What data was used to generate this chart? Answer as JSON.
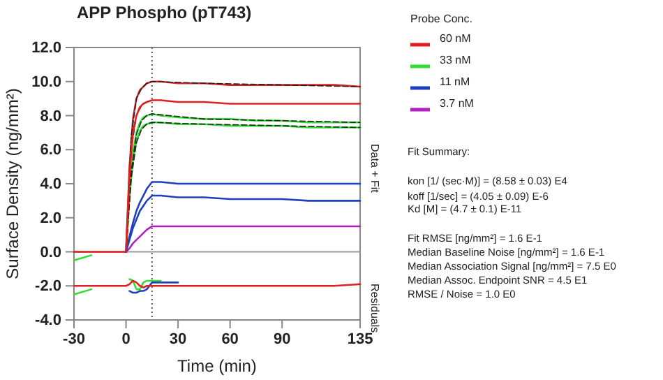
{
  "chart_data": {
    "type": "line",
    "title": "APP Phospho (pT743)",
    "xlabel": "Time (min)",
    "ylabel": "Surface Density (ng/mm²)",
    "legend_title": "Probe Conc.",
    "legend": "right",
    "x": [
      -30,
      -20,
      -10,
      0,
      2,
      4,
      6,
      8,
      10,
      12,
      15,
      20,
      30,
      45,
      60,
      75,
      90,
      105,
      120,
      135
    ],
    "xlim": [
      -30,
      135
    ],
    "xticks": [
      -30,
      0,
      30,
      60,
      90,
      135
    ],
    "ylim": [
      -4,
      12
    ],
    "yticks": [
      {
        "value": -4,
        "label": "-4.0"
      },
      {
        "value": -2,
        "label": "-2.0"
      },
      {
        "value": 0,
        "label": "0.0"
      },
      {
        "value": 2,
        "label": "2.0"
      },
      {
        "value": 4,
        "label": "4.0"
      },
      {
        "value": 6,
        "label": "6.0"
      },
      {
        "value": 8,
        "label": "8.0"
      },
      {
        "value": 10,
        "label": "10.0"
      },
      {
        "value": 12,
        "label": "12.0"
      }
    ],
    "grid": false,
    "marker": "none",
    "line_style": "solid",
    "series": [
      {
        "name": "60 nM",
        "color": "#e02020",
        "values": [
          null,
          null,
          null,
          0,
          5.0,
          7.8,
          9.0,
          9.5,
          9.7,
          9.9,
          10.0,
          10.0,
          9.9,
          9.9,
          9.8,
          9.8,
          9.8,
          9.8,
          9.8,
          9.7
        ]
      },
      {
        "name": "33 nM",
        "color": "#33dd33",
        "values": [
          -0.5,
          -0.2,
          null,
          0,
          3.5,
          5.8,
          7.0,
          7.6,
          7.9,
          8.0,
          8.1,
          8.0,
          7.9,
          7.8,
          7.8,
          7.7,
          7.7,
          7.6,
          7.6,
          7.6
        ]
      },
      {
        "name": "11 nM",
        "color": "#1f3fbf",
        "values": [
          null,
          null,
          null,
          0,
          0.9,
          1.7,
          2.4,
          2.9,
          3.3,
          3.7,
          4.1,
          4.1,
          4.0,
          4.0,
          4.0,
          4.0,
          4.0,
          4.0,
          4.0,
          4.0
        ]
      },
      {
        "name": "3.7 nM",
        "color": "#b020c0",
        "values": [
          null,
          null,
          null,
          0,
          0.2,
          0.5,
          0.7,
          0.9,
          1.1,
          1.3,
          1.5,
          1.5,
          1.5,
          1.5,
          1.5,
          1.5,
          1.5,
          1.5,
          1.5,
          1.5
        ]
      },
      {
        "color": "#33dd33",
        "values": [
          null,
          null,
          null,
          0,
          3.2,
          5.4,
          6.5,
          7.1,
          7.4,
          7.5,
          7.6,
          7.6,
          7.5,
          7.5,
          7.4,
          7.4,
          7.4,
          7.3,
          7.3,
          7.3
        ]
      },
      {
        "color": "#1f3fbf",
        "values": [
          null,
          null,
          null,
          0,
          0.7,
          1.4,
          1.9,
          2.4,
          2.7,
          3.0,
          3.3,
          3.3,
          3.2,
          3.2,
          3.1,
          3.1,
          3.1,
          3.0,
          3.0,
          3.0
        ]
      },
      {
        "color": "#33dd33",
        "values": [
          -2.5,
          -2.2,
          null,
          null,
          -1.6,
          -1.7,
          -2.2,
          -2.2,
          -1.8,
          -1.7,
          -1.7,
          -1.7,
          null,
          null,
          null,
          null,
          null,
          null,
          null,
          null
        ]
      },
      {
        "color": "#1f3fbf",
        "values": [
          null,
          null,
          null,
          null,
          -2.3,
          -2.4,
          -2.4,
          -2.3,
          -2.3,
          -2.2,
          -1.8,
          -1.8,
          -1.8,
          null,
          null,
          null,
          null,
          null,
          null,
          null
        ]
      },
      {
        "color": "#e02020",
        "values": [
          -2.0,
          -2.0,
          -2.0,
          -2.0,
          -1.9,
          -1.7,
          -1.8,
          -2.0,
          -2.1,
          -2.0,
          -2.0,
          -2.0,
          -2.0,
          -2.0,
          -2.0,
          -2.0,
          -2.0,
          -2.0,
          -2.0,
          -1.9
        ]
      },
      {
        "color": "#222222",
        "line_style": "dashed",
        "x": [
          0,
          3,
          6,
          9,
          12,
          15,
          45,
          90,
          135
        ],
        "values": [
          0,
          6.8,
          9.0,
          9.6,
          9.9,
          10.0,
          9.9,
          9.8,
          9.7
        ]
      },
      {
        "color": "#222222",
        "line_style": "dashed",
        "x": [
          0,
          3,
          6,
          9,
          12,
          15
        ],
        "values": [
          0,
          6.0,
          8.0,
          8.6,
          8.8,
          8.9
        ]
      },
      {
        "color": "#222222",
        "line_style": "dashed",
        "x": [
          0,
          3,
          6,
          9,
          12,
          15,
          45,
          90,
          135
        ],
        "values": [
          0,
          4.7,
          6.9,
          7.7,
          8.0,
          8.1,
          7.8,
          7.7,
          7.6
        ]
      },
      {
        "color": "#222222",
        "line_style": "dashed",
        "x": [
          0,
          3,
          6,
          9,
          12,
          15,
          45,
          90,
          135
        ],
        "values": [
          0,
          4.3,
          6.4,
          7.2,
          7.5,
          7.6,
          7.5,
          7.4,
          7.3
        ]
      },
      {
        "color": "#e02020",
        "values": [
          0,
          0,
          0,
          0,
          4.5,
          7.0,
          8.0,
          8.5,
          8.7,
          8.8,
          8.9,
          8.9,
          8.8,
          8.8,
          8.7,
          8.7,
          8.7,
          8.7,
          8.7,
          8.7
        ]
      }
    ],
    "ref_lines": [
      {
        "axis": "x",
        "value": 15,
        "color": "#555555",
        "line_style": "dotted"
      },
      {
        "axis": "y",
        "value": 0,
        "color": "#999999",
        "line_style": "solid"
      }
    ],
    "annotations": [
      "Data + Fit",
      "Residuals",
      "Fit Summary:",
      "kon  [1/ (sec·M)]  =   (8.58 ± 0.03) E4",
      "koff  [1/sec]  =   (4.05 ± 0.09) E-6",
      "Kd  [M]  =   (4.7 ± 0.1) E-11",
      "Fit RMSE [ng/mm²]  =   1.6 E-1",
      "Median Baseline Noise [ng/mm²]  =   1.6 E-1",
      "Median Association Signal [ng/mm²]  =   7.5 E0",
      "Median Assoc. Endpoint SNR  =   4.5 E1",
      "RMSE / Noise  =   1.0 E0"
    ]
  }
}
